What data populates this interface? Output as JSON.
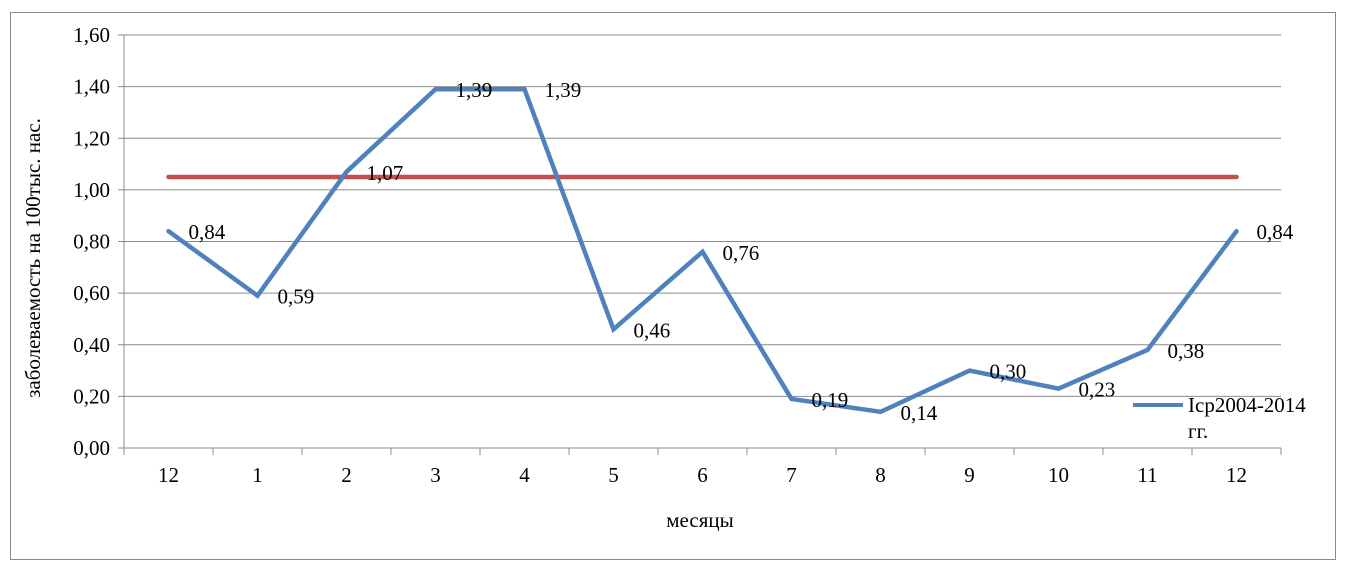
{
  "chart_data": {
    "type": "line",
    "categories": [
      "12",
      "1",
      "2",
      "3",
      "4",
      "5",
      "6",
      "7",
      "8",
      "9",
      "10",
      "11",
      "12"
    ],
    "series": [
      {
        "name": "Icp2004-2014 гг.",
        "values": [
          0.84,
          0.59,
          1.07,
          1.39,
          1.39,
          0.46,
          0.76,
          0.19,
          0.14,
          0.3,
          0.23,
          0.38,
          0.84
        ],
        "data_labels": [
          "0,84",
          "0,59",
          "1,07",
          "1,39",
          "1,39",
          "0,46",
          "0,76",
          "0,19",
          "0,14",
          "0,30",
          "0,23",
          "0,38",
          "0,84"
        ],
        "color": "#4f81bd"
      },
      {
        "values": [
          1.05,
          1.05,
          1.05,
          1.05,
          1.05,
          1.05,
          1.05,
          1.05,
          1.05,
          1.05,
          1.05,
          1.05,
          1.05
        ],
        "color": "#c0504d"
      }
    ],
    "xlabel": "месяцы",
    "ylabel": "заболеваемость на 100тыс. нас.",
    "ylim": [
      0,
      1.6
    ],
    "yticks": [
      "0,00",
      "0,20",
      "0,40",
      "0,60",
      "0,80",
      "1,00",
      "1,20",
      "1,40",
      "1,60"
    ],
    "grid": true,
    "legend_position": "bottom-right"
  }
}
